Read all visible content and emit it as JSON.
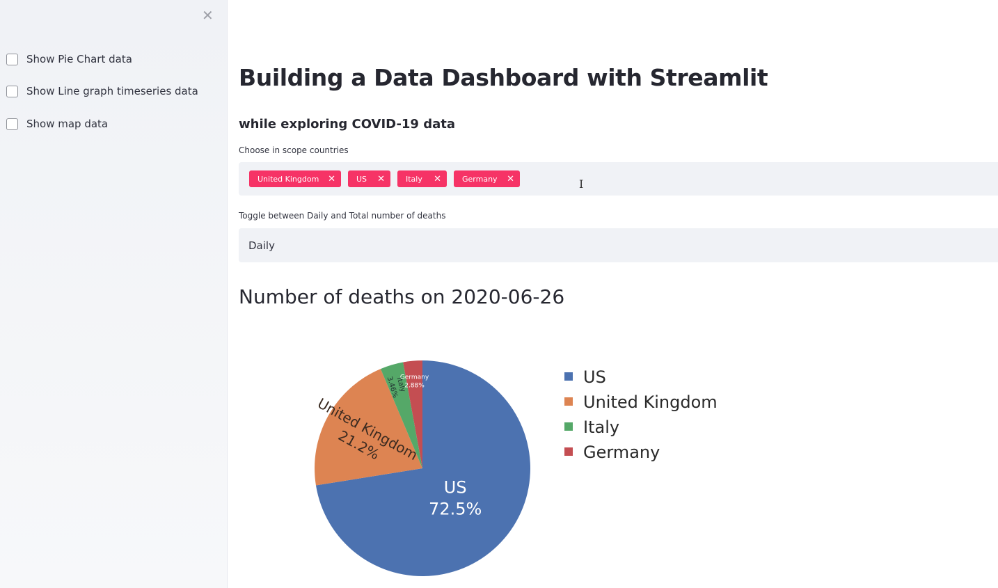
{
  "sidebar": {
    "checkboxes": [
      {
        "label": "Show Pie Chart data",
        "checked": false
      },
      {
        "label": "Show Line graph timeseries data",
        "checked": false
      },
      {
        "label": "Show map data",
        "checked": false
      }
    ]
  },
  "main": {
    "title": "Building a Data Dashboard with Streamlit",
    "subtitle": "while exploring COVID-19 data",
    "countries_label": "Choose in scope countries",
    "selected_countries": [
      "United Kingdom",
      "US",
      "Italy",
      "Germany"
    ],
    "toggle_label": "Toggle between Daily and Total number of deaths",
    "toggle_value": "Daily",
    "chart_heading": "Number of deaths on 2020-06-26"
  },
  "colors": {
    "tag": "#f63366",
    "US": "#4c72b0",
    "United Kingdom": "#dd8452",
    "Italy": "#55a868",
    "Germany": "#c44e52"
  },
  "chart_data": {
    "type": "pie",
    "title": "Number of deaths on 2020-06-26",
    "labels": [
      "US",
      "United Kingdom",
      "Italy",
      "Germany"
    ],
    "percent_labels": [
      "72.5%",
      "21.2%",
      "3.46%",
      "2.88%"
    ],
    "values": [
      72.5,
      21.2,
      3.46,
      2.88
    ],
    "legend": [
      "US",
      "United Kingdom",
      "Italy",
      "Germany"
    ],
    "legend_position": "right"
  }
}
